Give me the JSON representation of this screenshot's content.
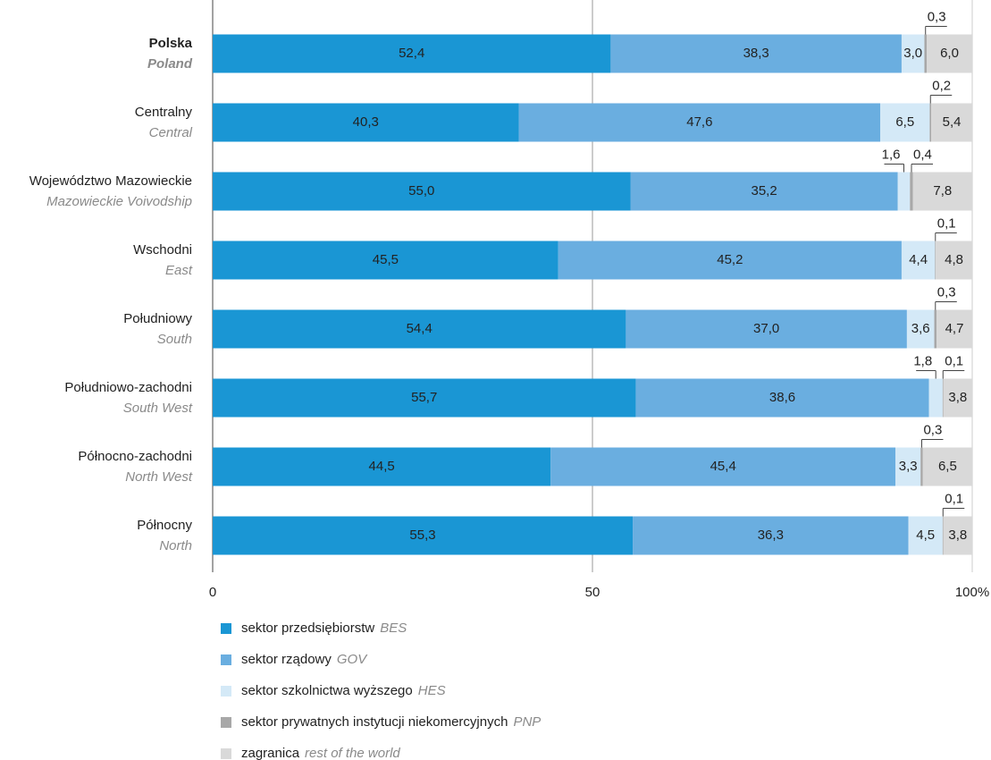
{
  "chart_data": {
    "type": "stacked_barh",
    "categories": [
      "Polska",
      "Centralny",
      "Województwo Mazowieckie",
      "Wschodni",
      "Południowy",
      "Południowo-zachodni",
      "Północno-zachodni",
      "Północny"
    ],
    "categories_en": [
      "Poland",
      "Central",
      "Mazowieckie Voivodship",
      "East",
      "South",
      "South West",
      "North West",
      "North"
    ],
    "series": [
      {
        "name": "sektor przedsiębiorstw",
        "abbr": "BES",
        "color": "#1a96d4",
        "values": [
          52.4,
          40.3,
          55.0,
          45.5,
          54.4,
          55.7,
          44.5,
          55.3
        ],
        "value_labels": [
          "52,4",
          "40,3",
          "55,0",
          "45,5",
          "54,4",
          "55,7",
          "44,5",
          "55,3"
        ]
      },
      {
        "name": "sektor rządowy",
        "abbr": "GOV",
        "color": "#6aaee0",
        "values": [
          38.3,
          47.6,
          35.2,
          45.2,
          37.0,
          38.6,
          45.4,
          36.3
        ],
        "value_labels": [
          "38,3",
          "47,6",
          "35,2",
          "45,2",
          "37,0",
          "38,6",
          "45,4",
          "36,3"
        ]
      },
      {
        "name": "sektor szkolnictwa wyższego",
        "abbr": "HES",
        "color": "#d4e9f7",
        "values": [
          3.0,
          6.5,
          1.6,
          4.4,
          3.6,
          1.8,
          3.3,
          4.5
        ],
        "value_labels": [
          "3,0",
          "6,5",
          "1,6",
          "4,4",
          "3,6",
          "1,8",
          "3,3",
          "4,5"
        ]
      },
      {
        "name": "sektor prywatnych instytucji niekomercyjnych",
        "abbr": "PNP",
        "color": "#a8a8a8",
        "values": [
          0.3,
          0.2,
          0.4,
          0.1,
          0.3,
          0.1,
          0.3,
          0.1
        ],
        "value_labels": [
          "0,3",
          "0,2",
          "0,4",
          "0,1",
          "0,3",
          "0,1",
          "0,3",
          "0,1"
        ]
      },
      {
        "name": "zagranica",
        "abbr": "rest of the world",
        "color": "#d9d9d9",
        "values": [
          6.0,
          5.4,
          7.8,
          4.8,
          4.7,
          3.8,
          6.5,
          3.8
        ],
        "value_labels": [
          "6,0",
          "5,4",
          "7,8",
          "4,8",
          "4,7",
          "3,8",
          "6,5",
          "3,8"
        ]
      }
    ],
    "xlim": [
      0,
      100
    ],
    "xticks": [
      0,
      50,
      {
        "value": 100,
        "label": "100%"
      }
    ],
    "grid": true
  }
}
